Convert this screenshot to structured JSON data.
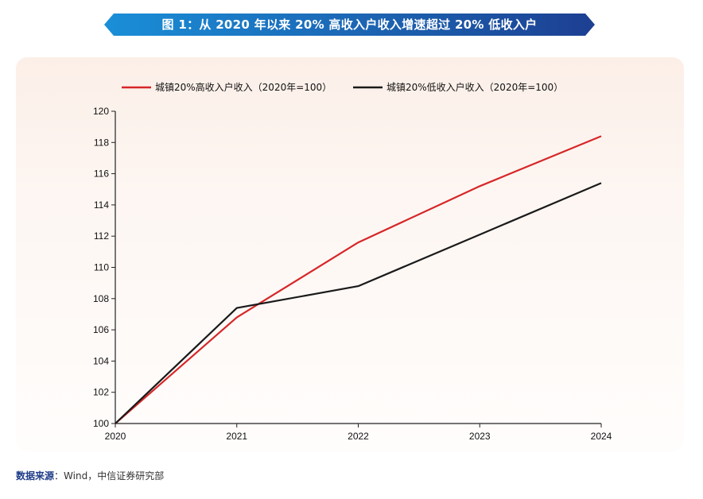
{
  "title": "图 1：从 2020 年以来 20% 高收入户收入增速超过 20% 低收入户",
  "source": {
    "label": "数据来源",
    "colon": "：",
    "text": "Wind，中信证券研究部"
  },
  "colors": {
    "banner_start": "#1a8fd8",
    "banner_end": "#1d3f92",
    "source_label": "#1f3c88"
  },
  "chart_data": {
    "type": "line",
    "categories": [
      "2020",
      "2021",
      "2022",
      "2023",
      "2024"
    ],
    "series": [
      {
        "name": "城镇20%高收入户收入（2020年=100）",
        "color": "#d62728",
        "values": [
          100,
          106.8,
          111.6,
          115.2,
          118.4
        ]
      },
      {
        "name": "城镇20%低收入户收入（2020年=100）",
        "color": "#1a1a1a",
        "values": [
          100,
          107.4,
          108.8,
          112.1,
          115.4
        ]
      }
    ],
    "ylim": [
      100,
      120
    ],
    "yticks": [
      100,
      102,
      104,
      106,
      108,
      110,
      112,
      114,
      116,
      118,
      120
    ],
    "legend": "top",
    "grid": false
  }
}
